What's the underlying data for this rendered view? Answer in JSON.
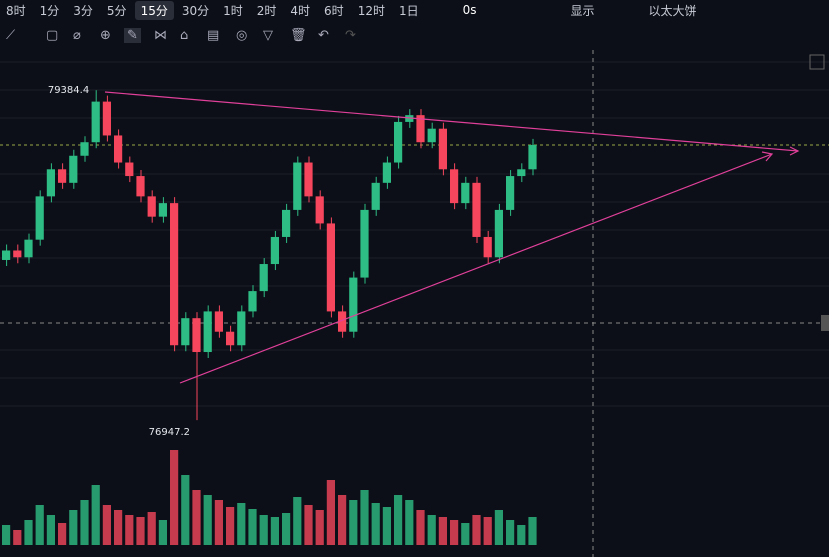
{
  "toolbar": {
    "intervals": [
      "8时",
      "1分",
      "3分",
      "5分",
      "15分",
      "30分",
      "1时",
      "2时",
      "4时",
      "6时",
      "12时",
      "1日"
    ],
    "active": 4,
    "countdown": "0s",
    "display": "显示",
    "user": "以太大饼"
  },
  "chart_data": {
    "type": "candlestick",
    "ylim": [
      76800,
      79770
    ],
    "high": 79384.4,
    "high_label": "79384.4",
    "low": 76947.2,
    "low_label": "76947.2",
    "up_color": "#2ebd85",
    "down_color": "#f6465d",
    "candles": [
      [
        78130,
        78200
      ],
      [
        78200,
        78150
      ],
      [
        78150,
        78280
      ],
      [
        78280,
        78600
      ],
      [
        78600,
        78800
      ],
      [
        78800,
        78700
      ],
      [
        78700,
        78900
      ],
      [
        78900,
        79000
      ],
      [
        79000,
        79300
      ],
      [
        79300,
        79050
      ],
      [
        79050,
        78850
      ],
      [
        78850,
        78750
      ],
      [
        78750,
        78600
      ],
      [
        78600,
        78450
      ],
      [
        78450,
        78550
      ],
      [
        78550,
        77500
      ],
      [
        77500,
        77700
      ],
      [
        77700,
        77450
      ],
      [
        77450,
        77750
      ],
      [
        77750,
        77600
      ],
      [
        77600,
        77500
      ],
      [
        77500,
        77750
      ],
      [
        77750,
        77900
      ],
      [
        77900,
        78100
      ],
      [
        78100,
        78300
      ],
      [
        78300,
        78500
      ],
      [
        78500,
        78850
      ],
      [
        78850,
        78600
      ],
      [
        78600,
        78400
      ],
      [
        78400,
        77750
      ],
      [
        77750,
        77600
      ],
      [
        77600,
        78000
      ],
      [
        78000,
        78500
      ],
      [
        78500,
        78700
      ],
      [
        78700,
        78850
      ],
      [
        78850,
        79150
      ],
      [
        79150,
        79200
      ],
      [
        79200,
        79000
      ],
      [
        79000,
        79100
      ],
      [
        79100,
        78800
      ],
      [
        78800,
        78550
      ],
      [
        78550,
        78700
      ],
      [
        78700,
        78300
      ],
      [
        78300,
        78150
      ],
      [
        78150,
        78500
      ],
      [
        78500,
        78750
      ],
      [
        78750,
        78800
      ],
      [
        78800,
        78980
      ]
    ],
    "volume": [
      20,
      15,
      25,
      40,
      30,
      22,
      35,
      45,
      60,
      40,
      35,
      30,
      28,
      33,
      25,
      95,
      70,
      55,
      50,
      45,
      38,
      42,
      36,
      30,
      28,
      32,
      48,
      40,
      35,
      65,
      50,
      45,
      55,
      42,
      38,
      50,
      45,
      35,
      30,
      28,
      25,
      22,
      30,
      28,
      35,
      25,
      20,
      28
    ],
    "vlim": [
      0,
      100
    ]
  }
}
